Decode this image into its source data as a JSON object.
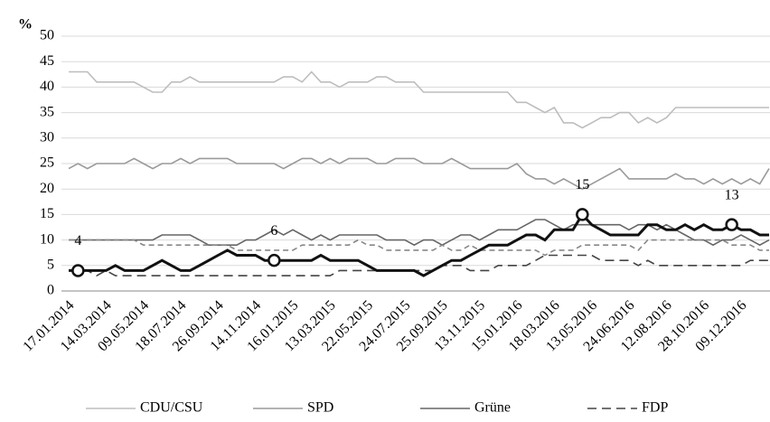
{
  "chart_data": {
    "type": "line",
    "ylabel": "%",
    "ylim": [
      0,
      50
    ],
    "yticks": [
      0,
      5,
      10,
      15,
      20,
      25,
      30,
      35,
      40,
      45,
      50
    ],
    "grid": true,
    "legend": "bottom",
    "categories": [
      "17.01.2014",
      null,
      null,
      null,
      "14.03.2014",
      null,
      null,
      null,
      "09.05.2014",
      null,
      null,
      null,
      "18.07.2014",
      null,
      null,
      null,
      "26.09.2014",
      null,
      null,
      null,
      "14.11.2014",
      null,
      null,
      null,
      "16.01.2015",
      null,
      null,
      null,
      "13.03.2015",
      null,
      null,
      null,
      "22.05.2015",
      null,
      null,
      null,
      "24.07.2015",
      null,
      null,
      null,
      "25.09.2015",
      null,
      null,
      null,
      "13.11.2015",
      null,
      null,
      null,
      "15.01.2016",
      null,
      null,
      null,
      "18.03.2016",
      null,
      null,
      null,
      "13.05.2016",
      null,
      null,
      null,
      "24.06.2016",
      null,
      null,
      null,
      "12.08.2016",
      null,
      null,
      null,
      "28.10.2016",
      null,
      null,
      null,
      "09.12.2016",
      null,
      null,
      null
    ],
    "series": [
      {
        "name": "CDU/CSU",
        "color": "#bdbdbd",
        "dash": "solid",
        "values": [
          43,
          43,
          43,
          41,
          41,
          41,
          41,
          41,
          40,
          39,
          39,
          41,
          41,
          42,
          41,
          41,
          41,
          41,
          41,
          41,
          41,
          41,
          41,
          42,
          42,
          41,
          43,
          41,
          41,
          40,
          41,
          41,
          41,
          42,
          42,
          41,
          41,
          41,
          39,
          39,
          39,
          39,
          39,
          39,
          39,
          39,
          39,
          39,
          37,
          37,
          36,
          35,
          36,
          33,
          33,
          32,
          33,
          34,
          34,
          35,
          35,
          33,
          34,
          33,
          34,
          36,
          36,
          36,
          36,
          36,
          36,
          36,
          36,
          36,
          36,
          36
        ]
      },
      {
        "name": "SPD",
        "color": "#9a9a9a",
        "dash": "solid",
        "values": [
          24,
          25,
          24,
          25,
          25,
          25,
          25,
          26,
          25,
          24,
          25,
          25,
          26,
          25,
          26,
          26,
          26,
          26,
          25,
          25,
          25,
          25,
          25,
          24,
          25,
          26,
          26,
          25,
          26,
          25,
          26,
          26,
          26,
          25,
          25,
          26,
          26,
          26,
          25,
          25,
          25,
          26,
          25,
          24,
          24,
          24,
          24,
          24,
          25,
          23,
          22,
          22,
          21,
          22,
          21,
          20,
          21,
          22,
          23,
          24,
          22,
          22,
          22,
          22,
          22,
          23,
          22,
          22,
          21,
          22,
          21,
          22,
          21,
          22,
          21,
          24
        ]
      },
      {
        "name": "Grüne",
        "color": "#666666",
        "dash": "solid",
        "values": [
          10,
          10,
          10,
          10,
          10,
          10,
          10,
          10,
          10,
          10,
          11,
          11,
          11,
          11,
          10,
          9,
          9,
          9,
          9,
          10,
          10,
          11,
          12,
          11,
          12,
          11,
          10,
          11,
          10,
          11,
          11,
          11,
          11,
          11,
          10,
          10,
          10,
          9,
          10,
          10,
          9,
          10,
          11,
          11,
          10,
          11,
          12,
          12,
          12,
          13,
          14,
          14,
          13,
          12,
          13,
          13,
          13,
          13,
          13,
          13,
          12,
          13,
          13,
          12,
          13,
          12,
          11,
          10,
          10,
          9,
          10,
          10,
          11,
          10,
          9,
          10
        ]
      },
      {
        "name": "FDP",
        "color": "#444444",
        "dash": "long",
        "values": [
          4,
          4,
          4,
          3,
          4,
          3,
          3,
          3,
          3,
          3,
          3,
          3,
          3,
          3,
          3,
          3,
          3,
          3,
          3,
          3,
          3,
          3,
          3,
          3,
          3,
          3,
          3,
          3,
          3,
          4,
          4,
          4,
          4,
          4,
          4,
          4,
          4,
          4,
          4,
          4,
          5,
          5,
          5,
          4,
          4,
          4,
          5,
          5,
          5,
          5,
          6,
          7,
          7,
          7,
          7,
          7,
          7,
          6,
          6,
          6,
          6,
          5,
          6,
          5,
          5,
          5,
          5,
          5,
          5,
          5,
          5,
          5,
          5,
          6,
          6,
          6
        ]
      },
      {
        "color": "#888888",
        "dash": "short",
        "values": [
          10,
          10,
          10,
          10,
          10,
          10,
          10,
          10,
          9,
          9,
          9,
          9,
          9,
          9,
          9,
          9,
          9,
          9,
          8,
          8,
          8,
          8,
          8,
          8,
          8,
          9,
          9,
          9,
          9,
          9,
          9,
          10,
          9,
          9,
          8,
          8,
          8,
          8,
          8,
          8,
          9,
          8,
          8,
          9,
          8,
          8,
          8,
          8,
          8,
          8,
          8,
          7,
          8,
          8,
          8,
          9,
          9,
          9,
          9,
          9,
          9,
          8,
          10,
          10,
          10,
          10,
          10,
          10,
          10,
          10,
          10,
          9,
          9,
          9,
          8,
          8
        ]
      },
      {
        "color": "#111111",
        "dash": "bold",
        "values": [
          4,
          4,
          4,
          4,
          4,
          5,
          4,
          4,
          4,
          5,
          6,
          5,
          4,
          4,
          5,
          6,
          7,
          8,
          7,
          7,
          7,
          6,
          6,
          6,
          6,
          6,
          6,
          7,
          6,
          6,
          6,
          6,
          5,
          4,
          4,
          4,
          4,
          4,
          3,
          4,
          5,
          6,
          6,
          7,
          8,
          9,
          9,
          9,
          10,
          11,
          11,
          10,
          12,
          12,
          12,
          15,
          13,
          12,
          11,
          11,
          11,
          11,
          13,
          13,
          12,
          12,
          13,
          12,
          13,
          12,
          12,
          13,
          12,
          12,
          11,
          11
        ],
        "value_labels": [
          null,
          "4",
          null,
          null,
          null,
          null,
          null,
          null,
          null,
          null,
          null,
          null,
          null,
          null,
          null,
          null,
          null,
          null,
          null,
          null,
          null,
          null,
          "6",
          null,
          null,
          null,
          null,
          null,
          null,
          null,
          null,
          null,
          null,
          null,
          null,
          null,
          null,
          null,
          null,
          null,
          null,
          null,
          null,
          null,
          null,
          null,
          null,
          null,
          null,
          null,
          null,
          null,
          null,
          null,
          null,
          "15",
          null,
          null,
          null,
          null,
          null,
          null,
          null,
          null,
          null,
          null,
          null,
          null,
          null,
          null,
          null,
          "13",
          null,
          null,
          null,
          null
        ]
      }
    ]
  }
}
